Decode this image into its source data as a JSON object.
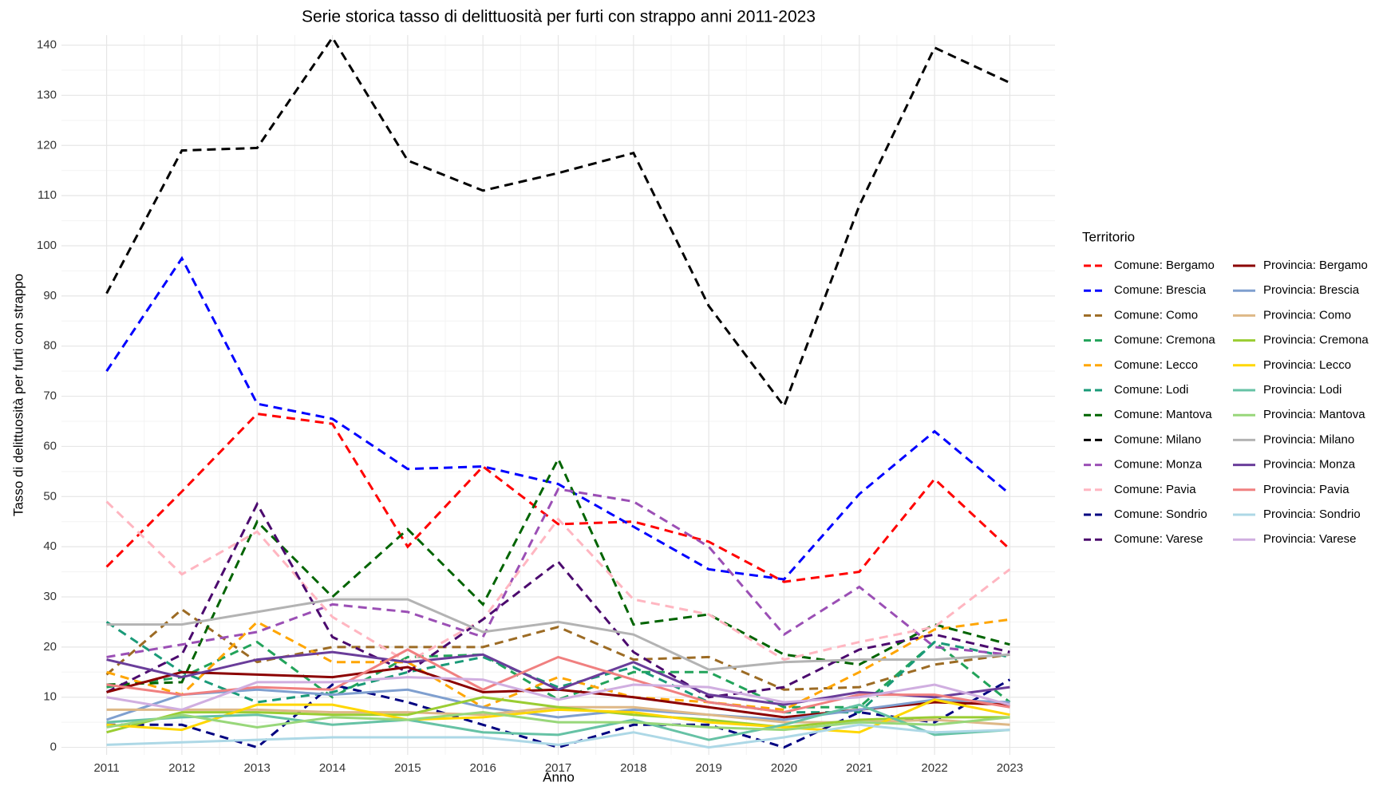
{
  "chart_data": {
    "type": "line",
    "title": "Serie storica tasso di delittuosità per furti con strappo anni 2011-2023",
    "x_label": "Anno",
    "y_label": "Tasso di delittuosità per furti con strappo",
    "legend_title": "Territorio",
    "legend_position": "right",
    "grid": true,
    "x": [
      2011,
      2012,
      2013,
      2014,
      2015,
      2016,
      2017,
      2018,
      2019,
      2020,
      2021,
      2022,
      2023
    ],
    "xlim": [
      2010.4,
      2023.6
    ],
    "xticks": [
      2011,
      2012,
      2013,
      2014,
      2015,
      2016,
      2017,
      2018,
      2019,
      2020,
      2021,
      2022,
      2023
    ],
    "ylim": [
      -1.5,
      142
    ],
    "yticks": [
      0,
      10,
      20,
      30,
      40,
      50,
      60,
      70,
      80,
      90,
      100,
      110,
      120,
      130,
      140
    ],
    "series": [
      {
        "name": "Comune: Bergamo",
        "color": "#ff0000",
        "dashed": true,
        "values": [
          36,
          51,
          66.5,
          64.5,
          40,
          56,
          44.5,
          45,
          41,
          33,
          35,
          53.5,
          39.5
        ]
      },
      {
        "name": "Comune: Brescia",
        "color": "#0000ff",
        "dashed": true,
        "values": [
          75,
          97.5,
          68.5,
          65.5,
          55.5,
          56,
          52.5,
          44,
          35.5,
          33.5,
          50.5,
          63,
          50.5
        ]
      },
      {
        "name": "Comune: Como",
        "color": "#9c6b24",
        "dashed": true,
        "values": [
          14.5,
          27.5,
          17,
          20,
          20,
          20,
          24,
          17.5,
          18,
          11.5,
          12,
          16.5,
          18.5
        ]
      },
      {
        "name": "Comune: Cremona",
        "color": "#22a35a",
        "dashed": true,
        "values": [
          12,
          14,
          21,
          10,
          18,
          18.5,
          9.5,
          15,
          15,
          8,
          8,
          21,
          9
        ]
      },
      {
        "name": "Comune: Lecco",
        "color": "#ffa500",
        "dashed": true,
        "values": [
          15,
          10.5,
          25,
          17,
          17,
          8,
          14,
          10,
          9,
          7.5,
          15,
          23.5,
          25.5
        ]
      },
      {
        "name": "Comune: Lodi",
        "color": "#1a9a78",
        "dashed": true,
        "values": [
          25,
          15,
          9,
          11,
          15,
          18,
          12,
          16,
          9,
          7,
          7,
          21,
          18
        ]
      },
      {
        "name": "Comune: Mantova",
        "color": "#006400",
        "dashed": true,
        "values": [
          12.5,
          13,
          45,
          30,
          43.5,
          28.5,
          57.5,
          24.5,
          26.5,
          18.5,
          16.5,
          24.5,
          20.5
        ]
      },
      {
        "name": "Comune: Milano",
        "color": "#000000",
        "dashed": true,
        "values": [
          90.5,
          119,
          119.5,
          141.5,
          117,
          111,
          114.5,
          118.5,
          88,
          68,
          108,
          139.5,
          132.5
        ]
      },
      {
        "name": "Comune: Monza",
        "color": "#9b4fb5",
        "dashed": true,
        "values": [
          18,
          20.5,
          23,
          28.5,
          27,
          22,
          51.5,
          49,
          40,
          22.5,
          32,
          20,
          18.5
        ]
      },
      {
        "name": "Comune: Pavia",
        "color": "#ffb6c1",
        "dashed": true,
        "values": [
          49,
          34.5,
          43,
          26,
          17,
          25.5,
          45.5,
          29.5,
          26.5,
          17.5,
          21,
          24,
          35.5
        ]
      },
      {
        "name": "Comune: Sondrio",
        "color": "#000080",
        "dashed": true,
        "values": [
          4.5,
          4.5,
          0,
          12.5,
          9,
          4.5,
          0,
          4.5,
          4.5,
          0,
          7,
          5,
          13.5
        ]
      },
      {
        "name": "Comune: Varese",
        "color": "#4b0a6e",
        "dashed": true,
        "values": [
          11,
          18.5,
          48.5,
          22,
          15,
          25.5,
          37,
          19,
          10,
          12,
          19.5,
          22.5,
          19
        ]
      },
      {
        "name": "Provincia: Bergamo",
        "color": "#8b0000",
        "dashed": false,
        "values": [
          11,
          15,
          14.5,
          14,
          16,
          11,
          11.5,
          10,
          8,
          6,
          7.5,
          9,
          8.5
        ]
      },
      {
        "name": "Provincia: Brescia",
        "color": "#7f9fcf",
        "dashed": false,
        "values": [
          5.5,
          10.5,
          11.5,
          10.5,
          11.5,
          8,
          6,
          7.5,
          6.5,
          5.5,
          7.5,
          9.5,
          9
        ]
      },
      {
        "name": "Provincia: Como",
        "color": "#deb887",
        "dashed": false,
        "values": [
          7.5,
          7.5,
          7.5,
          7,
          7,
          6.5,
          8,
          8,
          6.5,
          5,
          5,
          5.5,
          4.5
        ]
      },
      {
        "name": "Provincia: Cremona",
        "color": "#9acd32",
        "dashed": false,
        "values": [
          3,
          7,
          7,
          6.5,
          6.5,
          10,
          8,
          6.5,
          5.5,
          4,
          5.5,
          6,
          6
        ]
      },
      {
        "name": "Provincia: Lecco",
        "color": "#ffd700",
        "dashed": false,
        "values": [
          4.5,
          3.5,
          8.5,
          8.5,
          5.5,
          6,
          7.5,
          7,
          5,
          4,
          3,
          9.5,
          6.5
        ]
      },
      {
        "name": "Provincia: Lodi",
        "color": "#66c2a5",
        "dashed": false,
        "values": [
          5,
          6,
          6.5,
          4.5,
          5.5,
          3,
          2.5,
          5.5,
          1.5,
          4.5,
          8.5,
          2.5,
          3.5
        ]
      },
      {
        "name": "Provincia: Mantova",
        "color": "#98d77a",
        "dashed": false,
        "values": [
          4,
          6.5,
          4,
          6,
          5.5,
          7,
          5,
          5,
          4,
          3.5,
          5,
          4.5,
          6
        ]
      },
      {
        "name": "Provincia: Milano",
        "color": "#b3b3b3",
        "dashed": false,
        "values": [
          24.5,
          24.5,
          27,
          29.5,
          29.5,
          23,
          25,
          22.5,
          15.5,
          17,
          17.5,
          17.5,
          18.5
        ]
      },
      {
        "name": "Provincia: Monza",
        "color": "#6a3d9a",
        "dashed": false,
        "values": [
          17.5,
          14,
          17.5,
          19,
          17,
          18.5,
          11.5,
          17,
          10.5,
          8.5,
          11,
          10,
          12
        ]
      },
      {
        "name": "Provincia: Pavia",
        "color": "#f08080",
        "dashed": false,
        "values": [
          12.5,
          10.5,
          12,
          11.5,
          19.5,
          11.5,
          18,
          13.5,
          9,
          7,
          10.5,
          10.5,
          8
        ]
      },
      {
        "name": "Provincia: Sondrio",
        "color": "#add8e6",
        "dashed": false,
        "values": [
          0.5,
          1,
          1.5,
          2,
          2,
          2,
          0.5,
          3,
          0,
          2,
          4.5,
          3,
          3.5
        ]
      },
      {
        "name": "Provincia: Varese",
        "color": "#d0aee0",
        "dashed": false,
        "values": [
          10,
          7.5,
          13,
          13,
          14,
          13.5,
          9.5,
          12.5,
          12,
          9,
          10,
          12.5,
          8.5
        ]
      }
    ]
  }
}
